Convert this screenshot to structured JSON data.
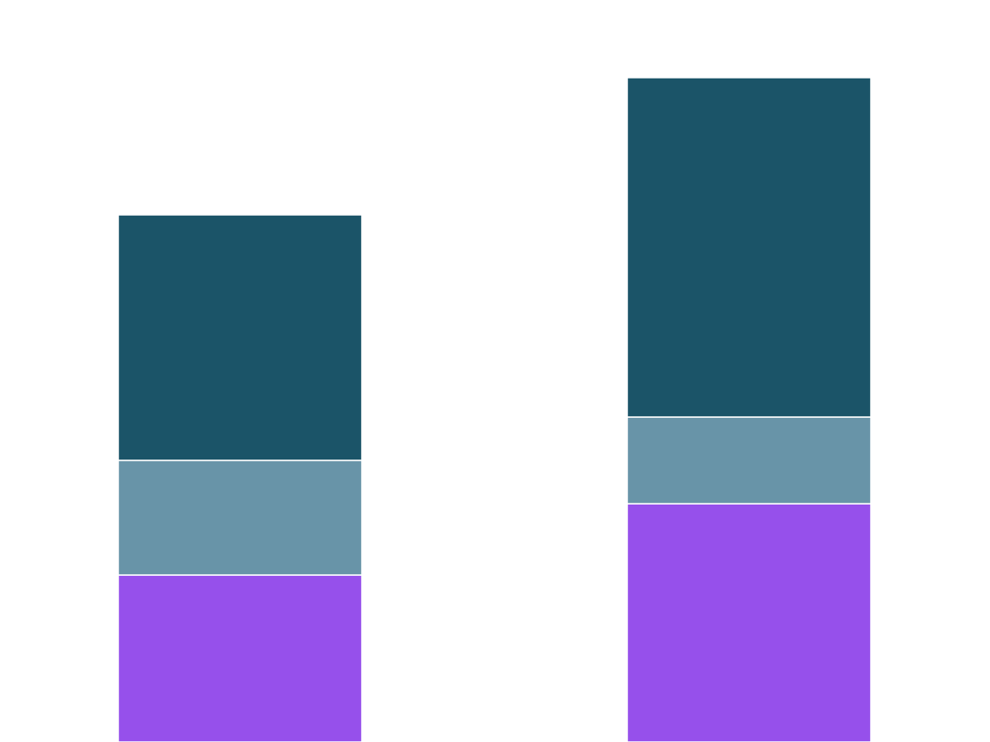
{
  "chart_data": {
    "type": "stacked_bar",
    "categories": [
      null,
      null
    ],
    "series": [
      {
        "color": "#9650eb",
        "values": [
          185,
          264
        ]
      },
      {
        "color": "#6894a8",
        "values": [
          127,
          96
        ]
      },
      {
        "color": "#1b5468",
        "values": [
          272,
          376
        ]
      }
    ],
    "ylim": [
      0,
      822
    ]
  }
}
